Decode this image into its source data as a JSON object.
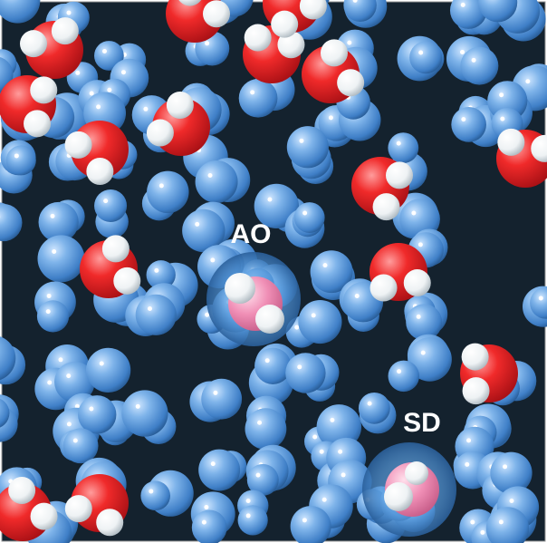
{
  "labels": {
    "ao": "AO",
    "sd": "SD"
  }
}
